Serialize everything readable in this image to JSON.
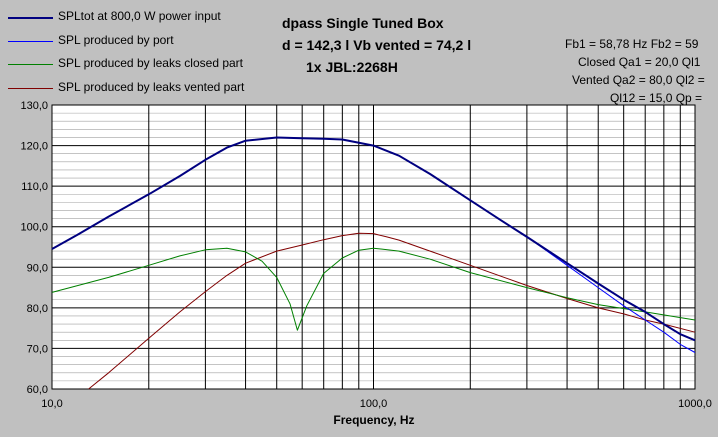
{
  "header": {
    "title_lines": [
      "dpass Single Tuned Box",
      "d = 142,3 l    Vb vented = 74,2 l",
      "1x JBL:2268H"
    ],
    "info_lines": [
      "Fb1 = 58,78 Hz  Fb2 = 59",
      "Closed Qa1 = 20,0  Ql1",
      "Vented Qa2 = 80,0  Ql2 =",
      "Ql12 = 15,0  Qp ="
    ]
  },
  "legend": [
    {
      "label": "SPLtot at 800,0 W power input",
      "color": "#000080"
    },
    {
      "label": "SPL produced by port",
      "color": "#0000ff"
    },
    {
      "label": "SPL produced by leaks closed part",
      "color": "#008000"
    },
    {
      "label": "SPL produced by leaks vented part",
      "color": "#800000"
    }
  ],
  "chart_data": {
    "type": "line",
    "xlabel": "Frequency, Hz",
    "ylabel": "",
    "x_scale": "log",
    "xlim": [
      10,
      1000
    ],
    "ylim": [
      60,
      130
    ],
    "grid": true,
    "legend_position": "top-left",
    "x_tick_labels": [
      "10,0",
      "100,0",
      "1000,0"
    ],
    "y_tick_labels": [
      "60,0",
      "70,0",
      "80,0",
      "90,0",
      "100,0",
      "110,0",
      "120,0",
      "130,0"
    ],
    "series": [
      {
        "name": "SPLtot at 800,0 W power input",
        "color": "#000080",
        "x": [
          10,
          12,
          15,
          20,
          25,
          30,
          35,
          40,
          50,
          60,
          70,
          80,
          100,
          120,
          150,
          200,
          250,
          300,
          400,
          500,
          600,
          700,
          800,
          900,
          1000
        ],
        "y": [
          94.5,
          98,
          102.5,
          108,
          112.5,
          116.5,
          119.5,
          121.2,
          122,
          121.8,
          121.7,
          121.5,
          120,
          117.5,
          113,
          106.5,
          101.5,
          97.5,
          91,
          86,
          82,
          79,
          76,
          73.5,
          72
        ]
      },
      {
        "name": "SPL produced by port",
        "color": "#0000ff",
        "x": [
          10,
          12,
          15,
          20,
          25,
          30,
          35,
          40,
          50,
          60,
          70,
          80,
          100,
          120,
          150,
          200,
          250,
          300,
          400,
          500,
          600,
          700,
          800,
          900,
          1000
        ],
        "y": [
          94.5,
          98,
          102.5,
          108,
          112.5,
          116.5,
          119.5,
          121.2,
          122,
          121.8,
          121.7,
          121.5,
          120,
          117.5,
          113,
          106.5,
          101.5,
          97.5,
          90.5,
          85,
          80.5,
          77,
          74,
          71,
          69
        ]
      },
      {
        "name": "SPL produced by leaks closed part",
        "color": "#008000",
        "x": [
          10,
          15,
          20,
          25,
          30,
          35,
          40,
          45,
          50,
          55,
          58,
          62,
          70,
          80,
          90,
          100,
          120,
          150,
          200,
          300,
          400,
          500,
          700,
          1000
        ],
        "y": [
          83.8,
          87.5,
          90.5,
          92.8,
          94.3,
          94.7,
          93.8,
          91.5,
          87.5,
          81,
          74.5,
          80.5,
          88.5,
          92.3,
          94.2,
          94.7,
          94,
          92,
          88.7,
          85,
          82.5,
          80.8,
          79,
          77
        ]
      },
      {
        "name": "SPL produced by leaks vented part",
        "color": "#800000",
        "x": [
          13,
          15,
          20,
          25,
          30,
          35,
          40,
          50,
          60,
          70,
          80,
          90,
          100,
          110,
          120,
          150,
          200,
          300,
          400,
          500,
          600,
          700,
          800,
          1000
        ],
        "y": [
          60,
          64,
          72.5,
          79,
          84,
          88,
          91,
          94,
          95.5,
          96.8,
          97.8,
          98.4,
          98.3,
          97.5,
          96.7,
          94,
          90.5,
          85.5,
          82.3,
          80,
          78.5,
          77,
          76,
          74
        ]
      }
    ]
  }
}
